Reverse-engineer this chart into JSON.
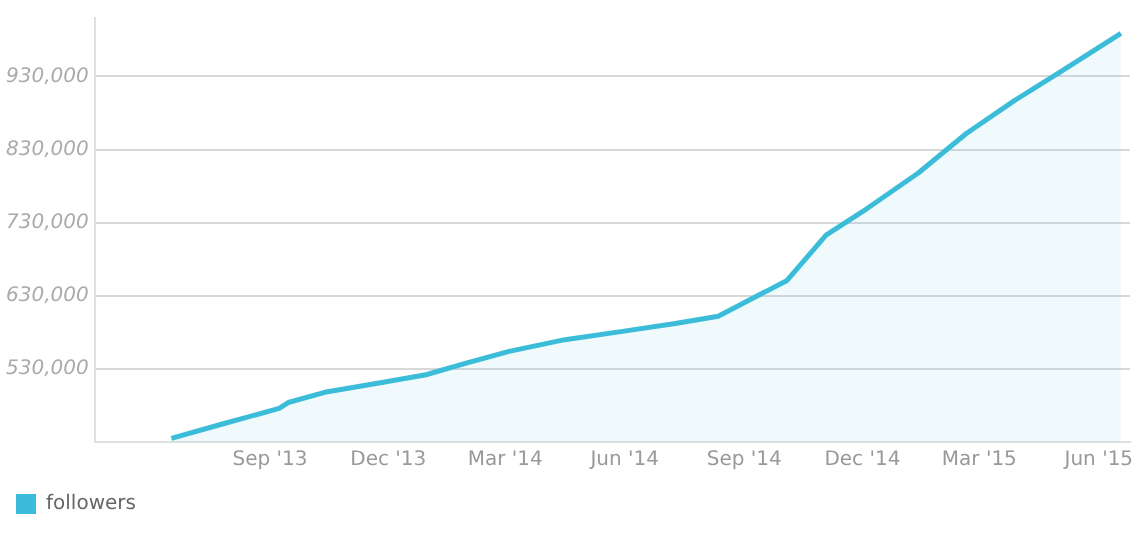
{
  "chart_data": {
    "type": "area",
    "x": [
      "2013-06-17",
      "2013-07-27",
      "2013-09-08",
      "2013-09-15",
      "2013-10-13",
      "2013-11-08",
      "2013-11-25",
      "2013-12-30",
      "2014-01-30",
      "2014-03-04",
      "2014-04-16",
      "2014-05-29",
      "2014-07-10",
      "2014-08-12",
      "2014-10-04",
      "2014-11-03",
      "2014-12-01",
      "2015-01-13",
      "2015-02-19",
      "2015-03-28",
      "2015-05-03",
      "2015-06-18"
    ],
    "series": [
      {
        "name": "followers",
        "color": "#3bbcd9",
        "values": [
          435000,
          455000,
          476000,
          484000,
          498000,
          506000,
          511000,
          522000,
          538000,
          554000,
          570000,
          581000,
          592000,
          602000,
          651000,
          713000,
          745000,
          798000,
          852000,
          897000,
          937000,
          989000
        ]
      }
    ],
    "xlim": [
      "2013-04-19",
      "2015-06-25"
    ],
    "xticks": [
      {
        "value": "2013-09-01",
        "label": "Sep '13"
      },
      {
        "value": "2013-12-01",
        "label": "Dec '13"
      },
      {
        "value": "2014-03-01",
        "label": "Mar '14"
      },
      {
        "value": "2014-06-01",
        "label": "Jun '14"
      },
      {
        "value": "2014-09-01",
        "label": "Sep '14"
      },
      {
        "value": "2014-12-01",
        "label": "Dec '14"
      },
      {
        "value": "2015-03-01",
        "label": "Mar '15"
      },
      {
        "value": "2015-06-01",
        "label": "Jun '15"
      }
    ],
    "ylim": [
      430000,
      1010000
    ],
    "yticks": [
      {
        "value": 530000,
        "label": "530,000"
      },
      {
        "value": 630000,
        "label": "630,000"
      },
      {
        "value": 730000,
        "label": "730,000"
      },
      {
        "value": 830000,
        "label": "830,000"
      },
      {
        "value": 930000,
        "label": "930,000"
      }
    ],
    "grid": "y",
    "line_style": "solid",
    "marker": "none",
    "legend": "bottom left"
  }
}
